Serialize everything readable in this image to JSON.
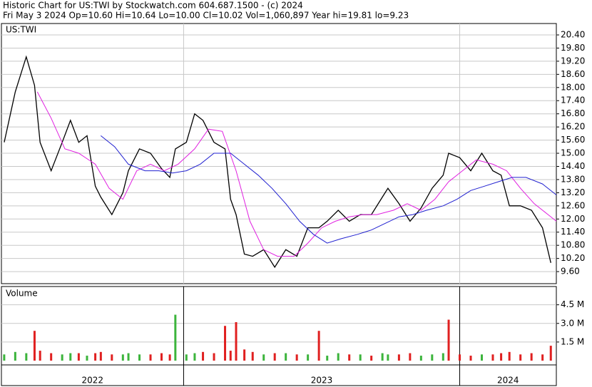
{
  "header": {
    "title": "Historic Chart for US:TWI by Stockwatch.com 604.687.1500 - (c) 2024",
    "subtitle": "Fri May  3 2024  Op=10.60  Hi=10.64  Lo=10.00  Cl=10.02  Vol=1,060,897  Year hi=19.81  lo=9.23"
  },
  "chart_data": [
    {
      "type": "line",
      "title": "US:TWI",
      "grid": true,
      "xlim": [
        2022.34,
        2024.35
      ],
      "xticks": [
        2023,
        2024
      ],
      "ylim": [
        9.05,
        20.92
      ],
      "yticks": [
        {
          "value": 9.6,
          "label": "9.60"
        },
        {
          "value": 10.2,
          "label": "10.20"
        },
        {
          "value": 10.8,
          "label": "10.80"
        },
        {
          "value": 11.4,
          "label": "11.40"
        },
        {
          "value": 12,
          "label": "12.00"
        },
        {
          "value": 12.6,
          "label": "12.60"
        },
        {
          "value": 13.2,
          "label": "13.20"
        },
        {
          "value": 13.8,
          "label": "13.80"
        },
        {
          "value": 14.4,
          "label": "14.40"
        },
        {
          "value": 15,
          "label": "15.00"
        },
        {
          "value": 15.6,
          "label": "15.60"
        },
        {
          "value": 16.2,
          "label": "16.20"
        },
        {
          "value": 16.8,
          "label": "16.80"
        },
        {
          "value": 17.4,
          "label": "17.40"
        },
        {
          "value": 18,
          "label": "18.00"
        },
        {
          "value": 18.6,
          "label": "18.60"
        },
        {
          "value": 19.2,
          "label": "19.20"
        },
        {
          "value": 19.8,
          "label": "19.80"
        },
        {
          "value": 20.4,
          "label": "20.40"
        }
      ],
      "series": [
        {
          "color": "#000000",
          "x": [
            2022.35,
            2022.39,
            2022.43,
            2022.46,
            2022.48,
            2022.52,
            2022.56,
            2022.59,
            2022.62,
            2022.65,
            2022.68,
            2022.7,
            2022.74,
            2022.78,
            2022.8,
            2022.84,
            2022.88,
            2022.92,
            2022.95,
            2022.97,
            2023.01,
            2023.04,
            2023.07,
            2023.11,
            2023.15,
            2023.17,
            2023.19,
            2023.22,
            2023.25,
            2023.29,
            2023.33,
            2023.37,
            2023.41,
            2023.45,
            2023.49,
            2023.52,
            2023.56,
            2023.6,
            2023.64,
            2023.68,
            2023.72,
            2023.74,
            2023.78,
            2023.82,
            2023.86,
            2023.9,
            2023.94,
            2023.96,
            2024.0,
            2024.04,
            2024.08,
            2024.12,
            2024.15,
            2024.18,
            2024.22,
            2024.26,
            2024.3,
            2024.33
          ],
          "values": [
            15.5,
            17.8,
            19.4,
            18.1,
            15.5,
            14.2,
            15.5,
            16.5,
            15.5,
            15.8,
            13.5,
            13.0,
            12.2,
            13.2,
            14.2,
            15.2,
            15.0,
            14.3,
            13.9,
            15.2,
            15.5,
            16.8,
            16.5,
            15.5,
            15.2,
            12.9,
            12.2,
            10.4,
            10.3,
            10.6,
            9.8,
            10.6,
            10.3,
            11.6,
            11.6,
            11.9,
            12.4,
            11.9,
            12.2,
            12.2,
            13.0,
            13.4,
            12.7,
            11.9,
            12.5,
            13.4,
            14.0,
            15.0,
            14.8,
            14.2,
            15.0,
            14.2,
            14.0,
            12.6,
            12.6,
            12.4,
            11.6,
            10.0
          ]
        },
        {
          "color": "#e020e0",
          "x": [
            2022.47,
            2022.52,
            2022.57,
            2022.62,
            2022.68,
            2022.73,
            2022.78,
            2022.83,
            2022.88,
            2022.93,
            2022.98,
            2023.04,
            2023.09,
            2023.14,
            2023.19,
            2023.24,
            2023.29,
            2023.34,
            2023.4,
            2023.45,
            2023.5,
            2023.55,
            2023.6,
            2023.65,
            2023.7,
            2023.76,
            2023.81,
            2023.86,
            2023.91,
            2023.96,
            2024.01,
            2024.06,
            2024.12,
            2024.17,
            2024.22,
            2024.27,
            2024.32,
            2024.35
          ],
          "values": [
            17.8,
            16.6,
            15.2,
            15.0,
            14.5,
            13.4,
            12.9,
            14.2,
            14.5,
            14.2,
            14.5,
            15.2,
            16.1,
            16.0,
            14.2,
            11.9,
            10.6,
            10.3,
            10.3,
            10.9,
            11.6,
            11.9,
            12.1,
            12.2,
            12.2,
            12.4,
            12.7,
            12.4,
            12.9,
            13.7,
            14.2,
            14.7,
            14.5,
            14.2,
            13.4,
            12.7,
            12.2,
            11.9
          ]
        },
        {
          "color": "#2020d0",
          "x": [
            2022.7,
            2022.75,
            2022.8,
            2022.86,
            2022.91,
            2022.96,
            2023.01,
            2023.06,
            2023.11,
            2023.17,
            2023.22,
            2023.27,
            2023.32,
            2023.37,
            2023.42,
            2023.47,
            2023.52,
            2023.57,
            2023.63,
            2023.68,
            2023.73,
            2023.78,
            2023.83,
            2023.88,
            2023.94,
            2023.99,
            2024.04,
            2024.09,
            2024.14,
            2024.19,
            2024.24,
            2024.3,
            2024.35
          ],
          "values": [
            15.8,
            15.3,
            14.5,
            14.2,
            14.2,
            14.1,
            14.2,
            14.5,
            15.0,
            15.0,
            14.5,
            14.0,
            13.4,
            12.7,
            11.9,
            11.3,
            10.9,
            11.1,
            11.3,
            11.5,
            11.8,
            12.1,
            12.2,
            12.4,
            12.6,
            12.9,
            13.3,
            13.5,
            13.7,
            13.9,
            13.9,
            13.6,
            13.1
          ]
        }
      ]
    },
    {
      "type": "bar",
      "title": "Volume",
      "xlim": [
        2022.34,
        2024.35
      ],
      "xticks": [
        2023,
        2024
      ],
      "x_labels": [
        "2022",
        "2023",
        "2024"
      ],
      "ylim": [
        0,
        5.8
      ],
      "yticks": [
        {
          "value": 1.5,
          "label": "1.5 M"
        },
        {
          "value": 3,
          "label": "3.0 M"
        },
        {
          "value": 4.5,
          "label": "4.5 M"
        }
      ],
      "x": [
        2022.35,
        2022.39,
        2022.43,
        2022.46,
        2022.48,
        2022.52,
        2022.56,
        2022.59,
        2022.62,
        2022.65,
        2022.68,
        2022.7,
        2022.74,
        2022.78,
        2022.8,
        2022.84,
        2022.88,
        2022.92,
        2022.95,
        2022.97,
        2023.01,
        2023.04,
        2023.07,
        2023.11,
        2023.15,
        2023.17,
        2023.19,
        2023.22,
        2023.25,
        2023.29,
        2023.33,
        2023.37,
        2023.41,
        2023.45,
        2023.49,
        2023.52,
        2023.56,
        2023.6,
        2023.64,
        2023.68,
        2023.72,
        2023.74,
        2023.78,
        2023.82,
        2023.86,
        2023.9,
        2023.94,
        2023.96,
        2024.0,
        2024.04,
        2024.08,
        2024.12,
        2024.15,
        2024.18,
        2024.22,
        2024.26,
        2024.3,
        2024.33
      ],
      "series": [
        {
          "color": "#3cb43c",
          "values": [
            0.5,
            0.7,
            0.6,
            null,
            null,
            null,
            0.5,
            0.6,
            null,
            0.4,
            null,
            null,
            null,
            0.5,
            0.6,
            0.5,
            null,
            null,
            null,
            3.7,
            0.5,
            0.6,
            null,
            null,
            null,
            null,
            null,
            null,
            null,
            0.5,
            null,
            0.6,
            null,
            0.5,
            null,
            0.4,
            0.6,
            null,
            0.5,
            null,
            0.6,
            0.5,
            null,
            null,
            0.4,
            0.5,
            0.6,
            null,
            null,
            null,
            0.5,
            null,
            null,
            null,
            null,
            null,
            null,
            null
          ]
        },
        {
          "color": "#e02020",
          "values": [
            null,
            null,
            null,
            2.4,
            0.8,
            0.6,
            null,
            null,
            0.6,
            null,
            0.6,
            0.7,
            0.5,
            null,
            null,
            null,
            0.5,
            0.6,
            0.5,
            null,
            null,
            null,
            0.7,
            0.6,
            2.8,
            0.8,
            3.1,
            0.9,
            0.7,
            null,
            0.6,
            null,
            0.5,
            null,
            2.4,
            null,
            null,
            0.5,
            null,
            0.4,
            null,
            null,
            0.5,
            0.6,
            null,
            null,
            null,
            3.3,
            0.5,
            0.4,
            null,
            0.5,
            0.6,
            0.7,
            0.5,
            0.6,
            0.5,
            1.2
          ]
        }
      ]
    }
  ]
}
